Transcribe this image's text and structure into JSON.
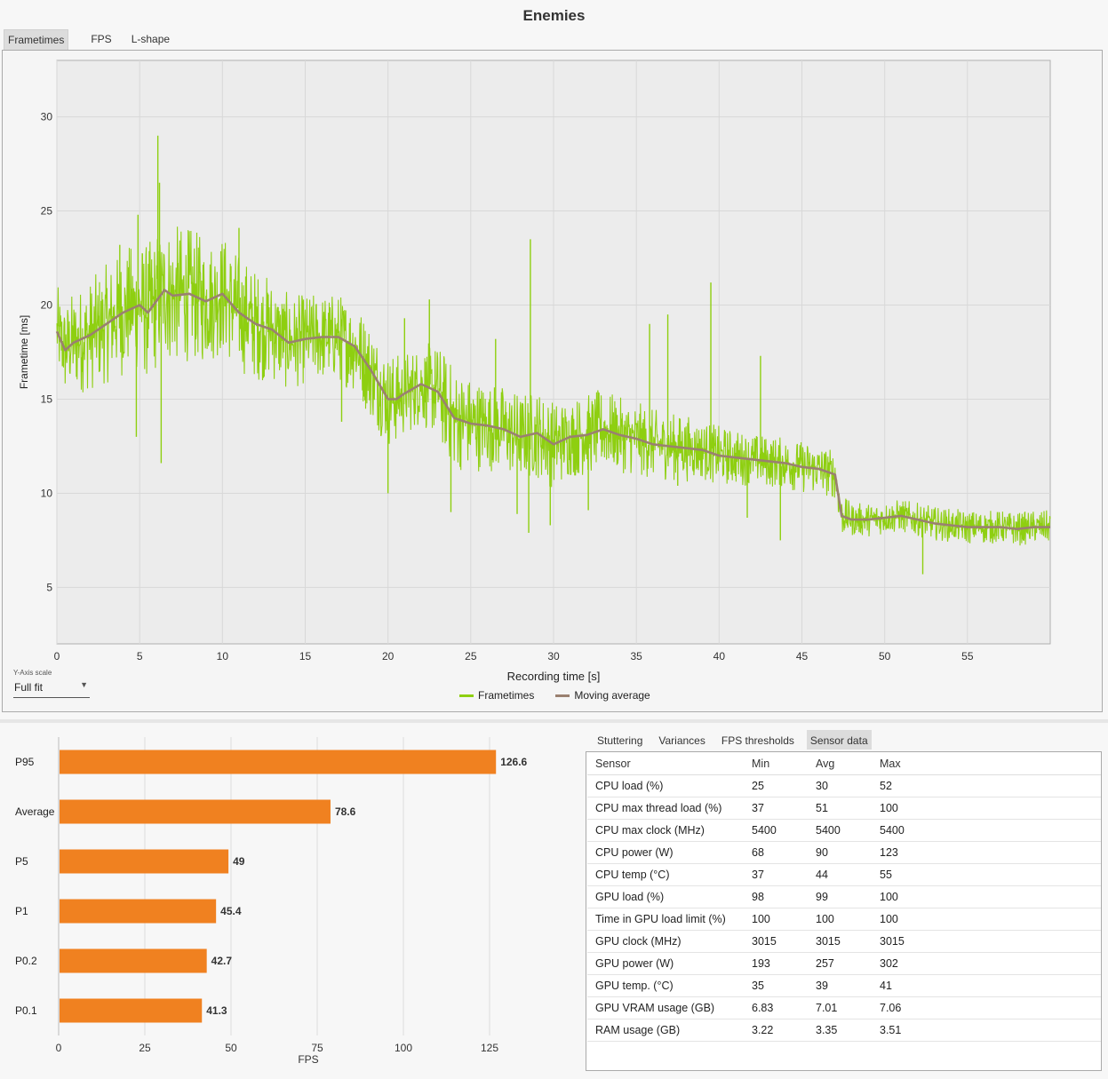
{
  "window": {
    "title": "Enemies"
  },
  "tabs": [
    {
      "label": "Frametimes",
      "active": true
    },
    {
      "label": "FPS",
      "active": false
    },
    {
      "label": "L-shape",
      "active": false
    }
  ],
  "y_axis_scale": {
    "label": "Y-Axis scale",
    "value": "Full fit"
  },
  "chart_data": [
    {
      "type": "line",
      "xlabel": "Recording time [s]",
      "ylabel": "Frametime [ms]",
      "xlim": [
        0,
        60
      ],
      "ylim": [
        2,
        33
      ],
      "x_ticks": [
        0,
        5,
        10,
        15,
        20,
        25,
        30,
        35,
        40,
        45,
        50,
        55
      ],
      "y_ticks": [
        5,
        10,
        15,
        20,
        25,
        30
      ],
      "grid": true,
      "legend_position": "bottom-center",
      "series": [
        {
          "name": "Frametimes",
          "color": "#8ecf10",
          "note": "noisy raw frametimes around the moving average",
          "x": [
            0,
            1,
            2,
            3,
            4,
            5,
            6,
            7,
            8,
            9,
            10,
            11,
            12,
            13,
            14,
            15,
            16,
            17,
            18,
            19,
            20,
            21,
            22,
            23,
            24,
            25,
            26,
            27,
            28,
            29,
            30,
            31,
            32,
            33,
            34,
            35,
            36,
            37,
            38,
            39,
            40,
            41,
            42,
            43,
            44,
            45,
            46,
            47,
            48,
            49,
            50,
            51,
            52,
            53,
            54,
            55,
            56,
            57,
            58,
            59,
            60
          ],
          "spread": [
            2.5,
            2.8,
            3.0,
            3.2,
            3.4,
            3.6,
            3.8,
            3.8,
            3.6,
            3.4,
            3.3,
            3.2,
            3.0,
            2.8,
            2.6,
            2.4,
            2.4,
            2.4,
            2.5,
            2.6,
            2.6,
            2.3,
            2.2,
            2.6,
            2.8,
            2.6,
            2.4,
            2.4,
            2.4,
            2.4,
            2.4,
            2.2,
            2.2,
            2.2,
            2.0,
            2.0,
            1.9,
            1.8,
            1.8,
            1.6,
            1.6,
            1.5,
            1.4,
            1.4,
            1.4,
            1.4,
            1.4,
            1.3,
            0.9,
            0.9,
            0.9,
            0.9,
            0.9,
            0.9,
            0.9,
            0.9,
            0.9,
            0.9,
            0.9,
            0.9,
            0.9
          ],
          "spikes": [
            [
              6.1,
              29.0
            ],
            [
              6.2,
              26.5
            ],
            [
              28.6,
              23.5
            ],
            [
              4.9,
              24.8
            ],
            [
              3.8,
              23.2
            ],
            [
              39.5,
              21.2
            ],
            [
              36.9,
              19.5
            ],
            [
              22.5,
              20.3
            ],
            [
              11.0,
              24.1
            ],
            [
              42.5,
              17.3
            ],
            [
              21.0,
              19.3
            ],
            [
              26.5,
              18.2
            ],
            [
              35.8,
              19.0
            ],
            [
              6.3,
              11.6
            ],
            [
              4.8,
              13.0
            ],
            [
              17.2,
              13.8
            ],
            [
              20.0,
              10.0
            ],
            [
              23.8,
              9.0
            ],
            [
              27.8,
              8.9
            ],
            [
              28.5,
              7.9
            ],
            [
              29.8,
              8.3
            ],
            [
              32.1,
              9.1
            ],
            [
              37.5,
              10.4
            ],
            [
              41.7,
              8.7
            ],
            [
              43.7,
              7.5
            ],
            [
              52.3,
              5.7
            ]
          ]
        },
        {
          "name": "Moving average",
          "color": "#9a8070",
          "x": [
            0,
            0.5,
            1,
            2,
            3,
            4,
            5,
            5.5,
            6,
            6.5,
            7,
            8,
            9,
            10,
            11,
            12,
            13,
            14,
            15,
            16,
            17,
            18,
            19,
            20,
            20.5,
            21,
            22,
            23,
            24,
            25,
            26,
            27,
            28,
            29,
            30,
            31,
            32,
            33,
            34,
            35,
            36,
            37,
            38,
            39,
            40,
            41,
            42,
            43,
            44,
            45,
            46,
            47,
            47.4,
            48,
            49,
            50,
            51,
            52,
            53,
            54,
            55,
            56,
            57,
            58,
            59,
            60
          ],
          "y": [
            18.6,
            17.6,
            18.0,
            18.4,
            19.0,
            19.6,
            20.0,
            19.6,
            20.2,
            20.8,
            20.5,
            20.6,
            20.2,
            20.6,
            19.6,
            19.0,
            18.7,
            18.0,
            18.2,
            18.3,
            18.3,
            17.8,
            16.5,
            15.0,
            15.0,
            15.3,
            15.8,
            15.4,
            14.0,
            13.7,
            13.6,
            13.4,
            13.0,
            13.2,
            12.6,
            13.0,
            13.1,
            13.4,
            13.1,
            12.9,
            12.6,
            12.5,
            12.4,
            12.3,
            12.0,
            11.9,
            11.8,
            11.7,
            11.6,
            11.4,
            11.3,
            11.0,
            8.8,
            8.6,
            8.6,
            8.7,
            8.8,
            8.6,
            8.4,
            8.3,
            8.2,
            8.2,
            8.2,
            8.1,
            8.2,
            8.2
          ]
        }
      ]
    },
    {
      "type": "bar",
      "orientation": "horizontal",
      "categories": [
        "P95",
        "Average",
        "P5",
        "P1",
        "P0.2",
        "P0.1"
      ],
      "values": [
        126.6,
        78.6,
        49,
        45.4,
        42.7,
        41.3
      ],
      "value_labels": [
        "126.6",
        "78.6",
        "49",
        "45.4",
        "42.7",
        "41.3"
      ],
      "color": "#f08120",
      "xlabel": "FPS",
      "xlim": [
        0,
        140
      ],
      "x_ticks": [
        0,
        25,
        50,
        75,
        100,
        125
      ],
      "grid": true
    }
  ],
  "bottom_tabs": [
    {
      "label": "Stuttering",
      "active": false
    },
    {
      "label": "Variances",
      "active": false
    },
    {
      "label": "FPS thresholds",
      "active": false
    },
    {
      "label": "Sensor data",
      "active": true
    }
  ],
  "sensor_table": {
    "headers": [
      "Sensor",
      "Min",
      "Avg",
      "Max"
    ],
    "rows": [
      [
        "CPU load (%)",
        "25",
        "30",
        "52"
      ],
      [
        "CPU max thread load (%)",
        "37",
        "51",
        "100"
      ],
      [
        "CPU max clock (MHz)",
        "5400",
        "5400",
        "5400"
      ],
      [
        "CPU power (W)",
        "68",
        "90",
        "123"
      ],
      [
        "CPU temp (°C)",
        "37",
        "44",
        "55"
      ],
      [
        "GPU load (%)",
        "98",
        "99",
        "100"
      ],
      [
        "Time in GPU load limit (%)",
        "100",
        "100",
        "100"
      ],
      [
        "GPU clock (MHz)",
        "3015",
        "3015",
        "3015"
      ],
      [
        "GPU power (W)",
        "193",
        "257",
        "302"
      ],
      [
        "GPU temp. (°C)",
        "35",
        "39",
        "41"
      ],
      [
        "GPU VRAM usage (GB)",
        "6.83",
        "7.01",
        "7.06"
      ],
      [
        "RAM usage (GB)",
        "3.22",
        "3.35",
        "3.51"
      ]
    ]
  }
}
